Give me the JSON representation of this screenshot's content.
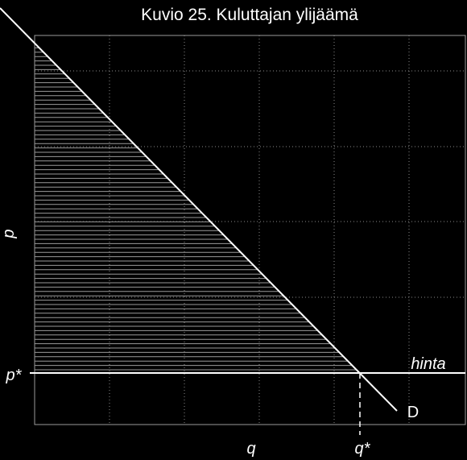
{
  "figure": {
    "title": "Kuvio 25. Kuluttajan ylijäämä",
    "y_axis_label": "p",
    "x_axis_label": "q",
    "price_tick_label": "p*",
    "quantity_tick_label": "q*",
    "price_line_label": "hinta",
    "demand_curve_label": "D"
  },
  "chart_data": {
    "type": "line",
    "title": "Kuvio 25. Kuluttajan ylijäämä",
    "xlabel": "q",
    "ylabel": "p",
    "grid": true,
    "series": [
      {
        "name": "D",
        "kind": "demand-line"
      },
      {
        "name": "hinta",
        "kind": "horizontal-price-line"
      }
    ],
    "equilibrium": {
      "x_label": "q*",
      "y_label": "p*"
    },
    "shaded_region": "consumer surplus",
    "colors": {
      "background": "#000000",
      "lines": "#ffffff",
      "hatch": "#9a9a9a",
      "grid": "#8a8a8a"
    }
  }
}
